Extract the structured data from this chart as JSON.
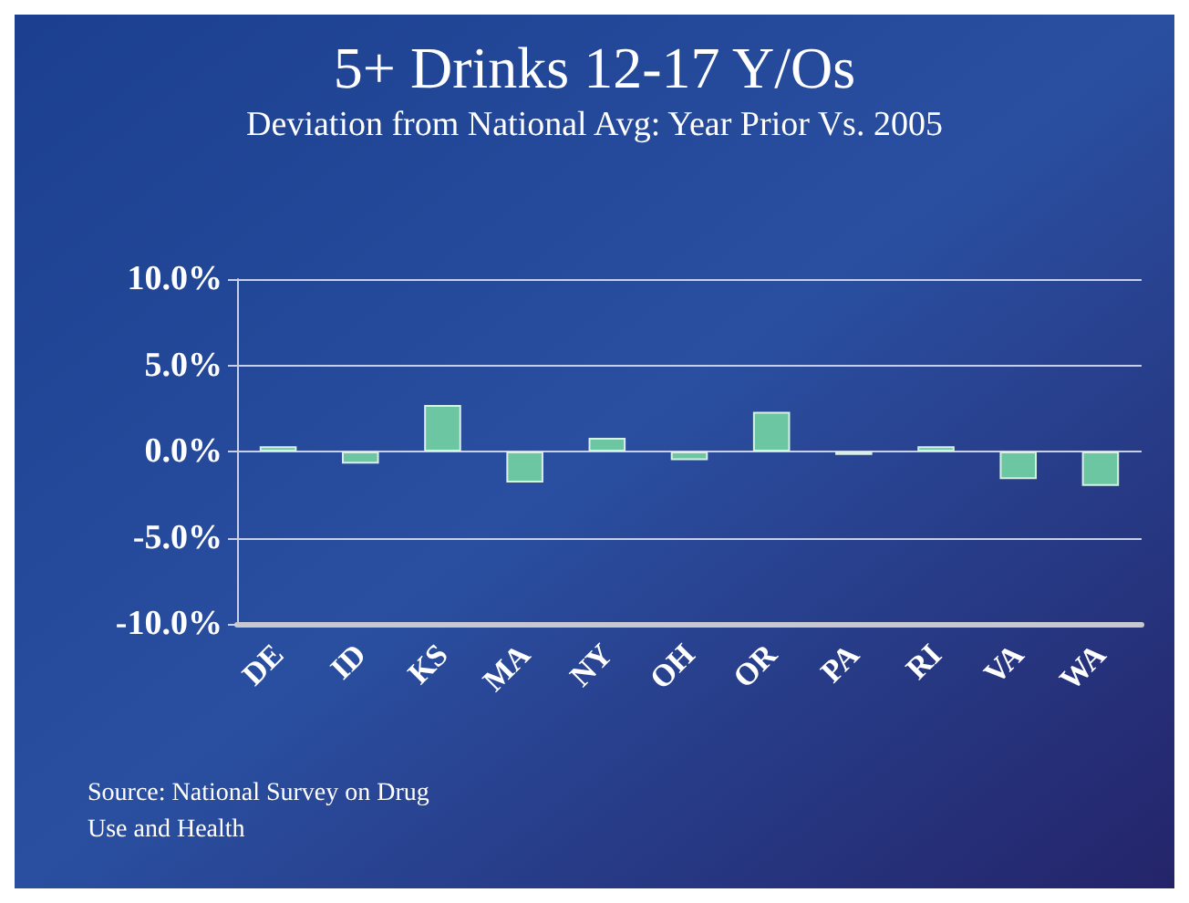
{
  "chart_data": {
    "type": "bar",
    "title": "5+ Drinks 12-17 Y/Os",
    "subtitle": "Deviation from National Avg: Year Prior Vs. 2005",
    "categories": [
      "DE",
      "ID",
      "KS",
      "MA",
      "NY",
      "OH",
      "OR",
      "PA",
      "RI",
      "VA",
      "WA"
    ],
    "values": [
      0.3,
      -0.7,
      2.7,
      -1.8,
      0.8,
      -0.5,
      2.3,
      -0.2,
      0.3,
      -1.6,
      -2.0
    ],
    "color": "#6cc6a2",
    "ylim": [
      -10,
      10
    ],
    "yticks": [
      {
        "value": -10,
        "label": "-10.0%"
      },
      {
        "value": -5,
        "label": "-5.0%"
      },
      {
        "value": 0,
        "label": "0.0%"
      },
      {
        "value": 5,
        "label": "5.0%"
      },
      {
        "value": 10,
        "label": "10.0%"
      }
    ],
    "grid": "y",
    "annotations": [
      "Source: National Survey on Drug\nUse and Health"
    ]
  }
}
